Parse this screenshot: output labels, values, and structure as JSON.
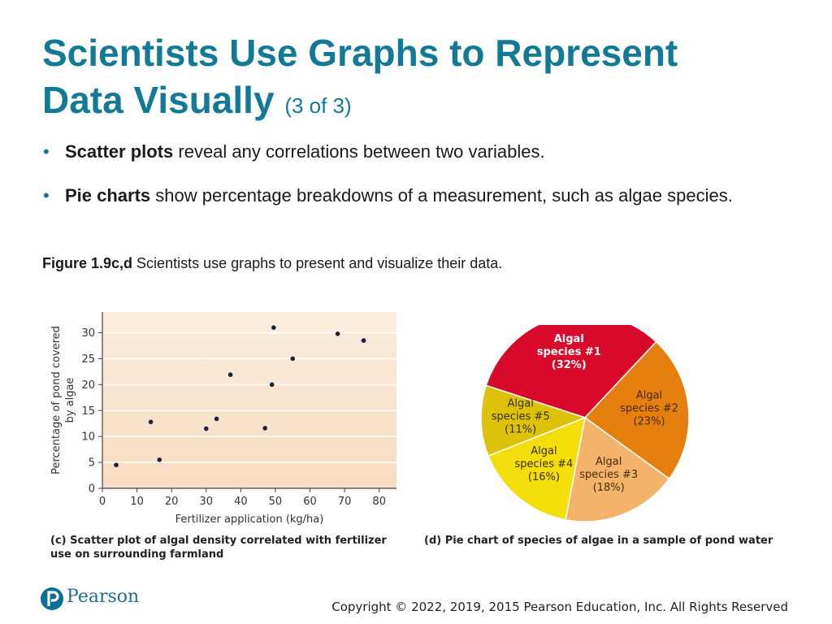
{
  "title": {
    "main_line1": "Scientists Use Graphs to Represent",
    "main_line2": "Data Visually",
    "sub": "(3 of 3)"
  },
  "bullets": [
    {
      "bold": "Scatter plots",
      "text": " reveal any correlations between two variables."
    },
    {
      "bold": "Pie charts",
      "text": " show percentage breakdowns of a measurement, such as algae species."
    }
  ],
  "figure_caption": {
    "bold": "Figure 1.9c,d",
    "text": " Scientists use graphs to present and visualize their data."
  },
  "captions": {
    "c": "(c) Scatter plot of algal density correlated with fertilizer use on surrounding farmland",
    "d": "(d) Pie chart of species of algae in a sample of pond water"
  },
  "footer": {
    "brand": "Pearson",
    "copyright": "Copyright © 2022, 2019, 2015 Pearson Education, Inc. All Rights Reserved"
  },
  "colors": {
    "title": "#127a96",
    "plot_bg": "#fbe9d6",
    "point": "#1a2440"
  },
  "chart_data": [
    {
      "type": "scatter",
      "xlabel": "Fertilizer application (kg/ha)",
      "ylabel": "Percentage of pond covered by algae",
      "xlim": [
        0,
        85
      ],
      "ylim": [
        0,
        34
      ],
      "xticks": [
        0,
        10,
        20,
        30,
        40,
        50,
        60,
        70,
        80
      ],
      "yticks": [
        0,
        5,
        10,
        15,
        20,
        25,
        30
      ],
      "grid": true,
      "points": [
        {
          "x": 4,
          "y": 4.5
        },
        {
          "x": 14,
          "y": 12.8
        },
        {
          "x": 16.5,
          "y": 5.5
        },
        {
          "x": 30,
          "y": 11.5
        },
        {
          "x": 33,
          "y": 13.4
        },
        {
          "x": 37,
          "y": 21.9
        },
        {
          "x": 47,
          "y": 11.6
        },
        {
          "x": 49,
          "y": 20.0
        },
        {
          "x": 49.5,
          "y": 31.0
        },
        {
          "x": 55,
          "y": 25.0
        },
        {
          "x": 68,
          "y": 29.8
        },
        {
          "x": 75.5,
          "y": 28.5
        }
      ]
    },
    {
      "type": "pie",
      "slices": [
        {
          "name": "Algal species #1",
          "value": 32,
          "label": [
            "Algal",
            "species #1",
            "(32%)"
          ],
          "color": "#d9092b",
          "text_color": "#ffffff",
          "bold": true
        },
        {
          "name": "Algal species #2",
          "value": 23,
          "label": [
            "Algal",
            "species #2",
            "(23%)"
          ],
          "color": "#e5800f",
          "text_color": "#4a2a05",
          "bold": false
        },
        {
          "name": "Algal species #3",
          "value": 18,
          "label": [
            "Algal",
            "species #3",
            "(18%)"
          ],
          "color": "#f3b36a",
          "text_color": "#4a2a05",
          "bold": false
        },
        {
          "name": "Algal species #4",
          "value": 16,
          "label": [
            "Algal",
            "species #4",
            "(16%)"
          ],
          "color": "#f3dd0a",
          "text_color": "#3a3000",
          "bold": false
        },
        {
          "name": "Algal species #5",
          "value": 11,
          "label": [
            "Algal",
            "species #5",
            "(11%)"
          ],
          "color": "#dcc209",
          "text_color": "#3a3000",
          "bold": false
        }
      ]
    }
  ]
}
